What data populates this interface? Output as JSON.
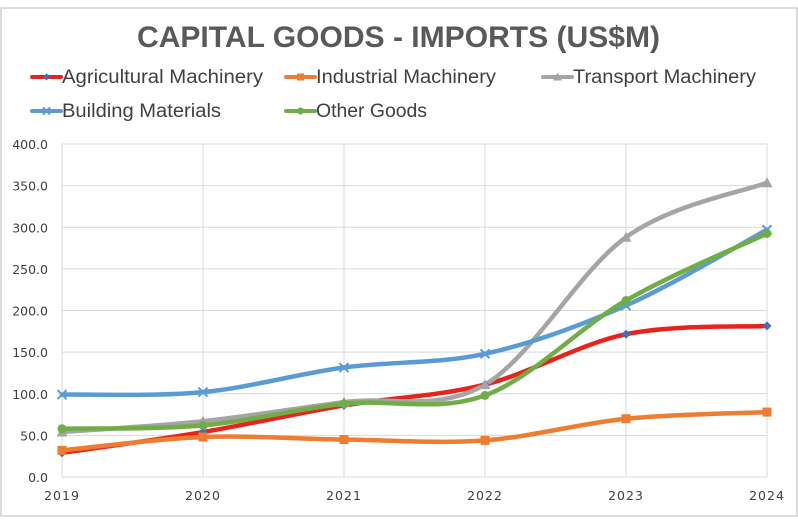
{
  "chart_data": {
    "type": "line",
    "title": "CAPITAL GOODS - IMPORTS (US$M)",
    "xlabel": "",
    "ylabel": "",
    "categories": [
      "2019",
      "2020",
      "2021",
      "2022",
      "2023",
      "2024"
    ],
    "ylim": [
      0,
      400
    ],
    "yticks": [
      "0.0",
      "50.0",
      "100.0",
      "150.0",
      "200.0",
      "250.0",
      "300.0",
      "350.0",
      "400.0"
    ],
    "grid": true,
    "smooth": true,
    "legend_position": "top",
    "series": [
      {
        "name": "Agricultural Machinery",
        "color": "#e8231a",
        "marker": "diamond",
        "marker_color": "#3f6fc4",
        "values": [
          29,
          54,
          86,
          111,
          171.5,
          181.5
        ]
      },
      {
        "name": "Industrial Machinery",
        "color": "#ed7d31",
        "marker": "square",
        "marker_color": "#ed7d31",
        "values": [
          32,
          48,
          45,
          44,
          70,
          78
        ]
      },
      {
        "name": "Transport Machinery",
        "color": "#a5a5a5",
        "marker": "triangle",
        "marker_color": "#a5a5a5",
        "values": [
          54,
          67,
          90,
          111,
          288,
          353.5
        ]
      },
      {
        "name": "Building Materials",
        "color": "#5b9bd5",
        "marker": "x",
        "marker_color": "#5b9bd5",
        "values": [
          99,
          102,
          131.5,
          148,
          206,
          297
        ]
      },
      {
        "name": "Other Goods",
        "color": "#70ad47",
        "marker": "circle",
        "marker_color": "#70ad47",
        "values": [
          58,
          62,
          88,
          98,
          212,
          292.5
        ]
      }
    ]
  }
}
